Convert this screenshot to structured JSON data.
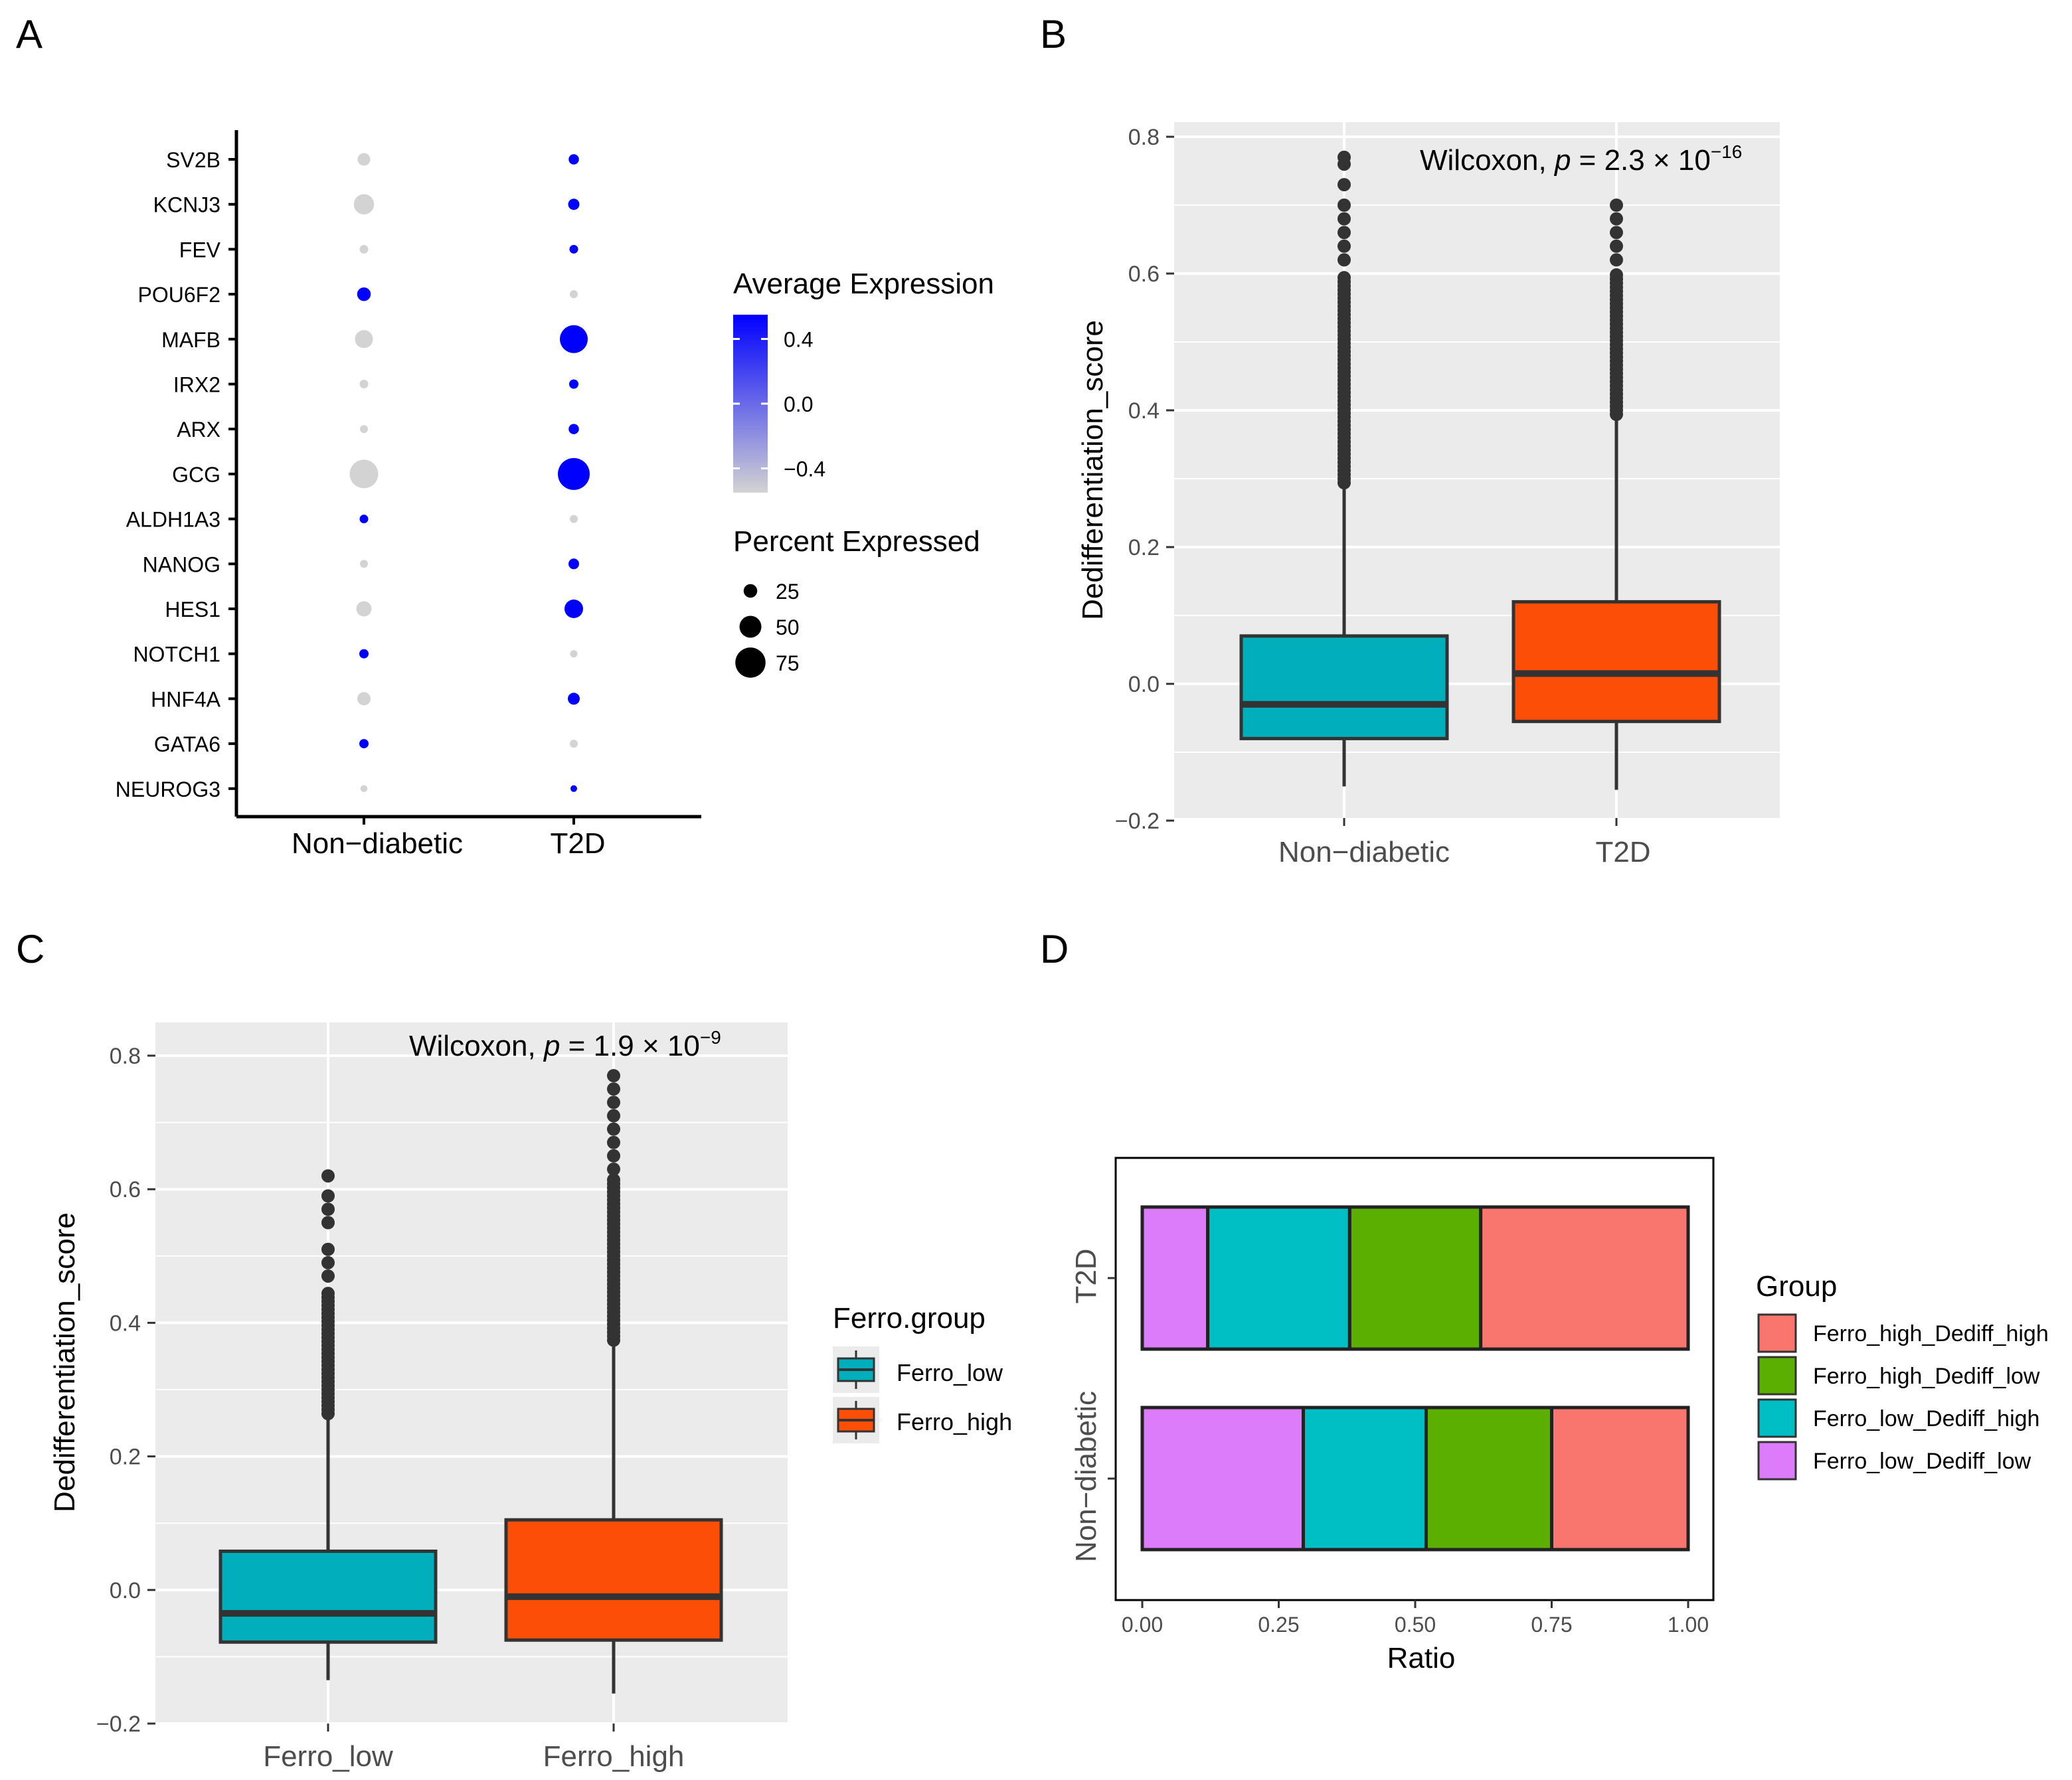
{
  "panel_labels": {
    "a": "A",
    "b": "B",
    "c": "C",
    "d": "D"
  },
  "colors": {
    "teal": "#00AFBB",
    "orange": "#FC4E07",
    "panel_bg": "#EBEBEB",
    "grid": "#FFFFFF",
    "dot_high": "#0000FF",
    "dot_low": "#D3D3D3",
    "outlier": "#333333",
    "ferro_high_dediff_high": "#F8766D",
    "ferro_high_dediff_low": "#5BAF00",
    "ferro_low_dediff_high": "#00BFC4",
    "ferro_low_dediff_low": "#DC7CFB"
  },
  "chart_data": [
    {
      "id": "A",
      "type": "dotplot",
      "genes": [
        "SV2B",
        "KCNJ3",
        "FEV",
        "POU6F2",
        "MAFB",
        "IRX2",
        "ARX",
        "GCG",
        "ALDH1A3",
        "NANOG",
        "HES1",
        "NOTCH1",
        "HNF4A",
        "GATA6",
        "NEUROG3"
      ],
      "groups": [
        "Non−diabetic",
        "T2D"
      ],
      "avg_expression": {
        "Non−diabetic": [
          -0.5,
          -0.5,
          -0.5,
          0.5,
          -0.5,
          -0.5,
          -0.5,
          -0.5,
          0.5,
          -0.5,
          -0.5,
          0.5,
          -0.5,
          0.5,
          -0.5
        ],
        "T2D": [
          0.5,
          0.5,
          0.5,
          -0.5,
          0.5,
          0.5,
          0.5,
          0.5,
          -0.5,
          0.5,
          0.5,
          -0.5,
          0.5,
          -0.5,
          0.5
        ]
      },
      "pct_expressed": {
        "Non−diabetic": [
          22,
          45,
          10,
          25,
          38,
          10,
          8,
          70,
          10,
          8,
          30,
          12,
          24,
          12,
          5
        ],
        "T2D": [
          15,
          18,
          10,
          8,
          68,
          12,
          15,
          80,
          8,
          16,
          40,
          6,
          20,
          8,
          4
        ]
      },
      "legend_color_title": "Average Expression",
      "legend_color_ticks": [
        0.4,
        0.0,
        -0.4
      ],
      "legend_color_tick_labels": [
        "0.4",
        "0.0",
        "−0.4"
      ],
      "legend_size_title": "Percent Expressed",
      "legend_size_values": [
        25,
        50,
        75
      ]
    },
    {
      "id": "B",
      "type": "boxplot",
      "categories": [
        "Non−diabetic",
        "T2D"
      ],
      "ylabel": "Dedifferentiation_score",
      "ylim": [
        -0.2,
        0.8
      ],
      "yticks": [
        -0.2,
        0.0,
        0.2,
        0.4,
        0.6,
        0.8
      ],
      "ytick_labels": [
        "−0.2",
        "0.0",
        "0.2",
        "0.4",
        "0.6",
        "0.8"
      ],
      "boxes": [
        {
          "whisker_low": -0.15,
          "q1": -0.08,
          "median": -0.03,
          "q3": 0.07,
          "whisker_high": 0.29
        },
        {
          "whisker_low": -0.155,
          "q1": -0.055,
          "median": 0.015,
          "q3": 0.12,
          "whisker_high": 0.39
        }
      ],
      "outliers": [
        {
          "range": [
            0.29,
            0.6
          ],
          "extra": [
            0.62,
            0.64,
            0.66,
            0.68,
            0.7,
            0.73,
            0.76,
            0.77
          ]
        },
        {
          "range": [
            0.39,
            0.6
          ],
          "extra": [
            0.62,
            0.64,
            0.66,
            0.68,
            0.7
          ]
        }
      ],
      "annotation_prefix": "Wilcoxon, ",
      "annotation_p": "p",
      "annotation_mid": " = 2.3 × 10",
      "annotation_exp": "−16"
    },
    {
      "id": "C",
      "type": "boxplot",
      "categories": [
        "Ferro_low",
        "Ferro_high"
      ],
      "ylabel": "Dedifferentiation_score",
      "ylim": [
        -0.2,
        0.8
      ],
      "yticks": [
        -0.2,
        0.0,
        0.2,
        0.4,
        0.6,
        0.8
      ],
      "ytick_labels": [
        "−0.2",
        "0.0",
        "0.2",
        "0.4",
        "0.6",
        "0.8"
      ],
      "boxes": [
        {
          "whisker_low": -0.135,
          "q1": -0.078,
          "median": -0.035,
          "q3": 0.058,
          "whisker_high": 0.26
        },
        {
          "whisker_low": -0.155,
          "q1": -0.075,
          "median": -0.01,
          "q3": 0.105,
          "whisker_high": 0.37
        }
      ],
      "outliers": [
        {
          "range": [
            0.26,
            0.45
          ],
          "extra": [
            0.47,
            0.49,
            0.51,
            0.55,
            0.57,
            0.59,
            0.62
          ]
        },
        {
          "range": [
            0.37,
            0.62
          ],
          "extra": [
            0.63,
            0.65,
            0.67,
            0.69,
            0.71,
            0.73,
            0.75,
            0.77
          ]
        }
      ],
      "annotation_prefix": "Wilcoxon, ",
      "annotation_p": "p",
      "annotation_mid": " = 1.9 × 10",
      "annotation_exp": "−9",
      "legend_title": "Ferro.group",
      "legend_labels": [
        "Ferro_low",
        "Ferro_high"
      ]
    },
    {
      "id": "D",
      "type": "bar",
      "orientation": "horizontal-stacked",
      "categories": [
        "Non−diabetic",
        "T2D"
      ],
      "xlabel": "Ratio",
      "xlim": [
        0,
        1
      ],
      "xticks": [
        0,
        0.25,
        0.5,
        0.75,
        1.0
      ],
      "xtick_labels": [
        "0.00",
        "0.25",
        "0.50",
        "0.75",
        "1.00"
      ],
      "stack_order": [
        "Ferro_low_Dediff_low",
        "Ferro_low_Dediff_high",
        "Ferro_high_Dediff_low",
        "Ferro_high_Dediff_high"
      ],
      "series": [
        {
          "name": "Ferro_high_Dediff_high",
          "values": [
            0.25,
            0.38
          ]
        },
        {
          "name": "Ferro_high_Dediff_low",
          "values": [
            0.23,
            0.24
          ]
        },
        {
          "name": "Ferro_low_Dediff_high",
          "values": [
            0.225,
            0.26
          ]
        },
        {
          "name": "Ferro_low_Dediff_low",
          "values": [
            0.295,
            0.12
          ]
        }
      ],
      "legend_title": "Group",
      "legend_labels": [
        "Ferro_high_Dediff_high",
        "Ferro_high_Dediff_low",
        "Ferro_low_Dediff_high",
        "Ferro_low_Dediff_low"
      ]
    }
  ]
}
